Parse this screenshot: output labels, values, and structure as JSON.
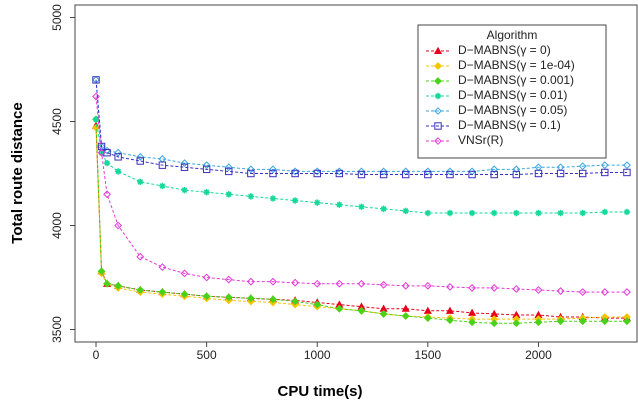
{
  "chart_data": {
    "type": "line",
    "x_label": "CPU time(s)",
    "y_label": "Total route distance",
    "legend_title": "Algorithm",
    "legend_position": "upper right",
    "x": [
      0,
      25,
      50,
      100,
      200,
      300,
      400,
      500,
      600,
      700,
      800,
      900,
      1000,
      1100,
      1200,
      1300,
      1400,
      1500,
      1600,
      1700,
      1800,
      1900,
      2000,
      2100,
      2200,
      2300,
      2400
    ],
    "series": [
      {
        "name": "D−MABNS(γ = 0)",
        "color": "#e8001c",
        "marker": "triangle",
        "values": [
          4480,
          3780,
          3720,
          3710,
          3690,
          3680,
          3670,
          3660,
          3655,
          3650,
          3645,
          3640,
          3630,
          3620,
          3610,
          3600,
          3600,
          3590,
          3590,
          3580,
          3575,
          3570,
          3570,
          3560,
          3560,
          3555,
          3555
        ]
      },
      {
        "name": "D−MABNS(γ = 1e-04)",
        "color": "#f5c400",
        "marker": "diamond",
        "values": [
          4470,
          3770,
          3720,
          3700,
          3680,
          3670,
          3660,
          3650,
          3640,
          3635,
          3630,
          3620,
          3610,
          3600,
          3590,
          3575,
          3565,
          3560,
          3555,
          3550,
          3550,
          3550,
          3550,
          3550,
          3555,
          3560,
          3560
        ]
      },
      {
        "name": "D−MABNS(γ = 0.001)",
        "color": "#4ad21a",
        "marker": "diamond",
        "values": [
          4510,
          3780,
          3720,
          3710,
          3690,
          3680,
          3670,
          3660,
          3655,
          3650,
          3645,
          3635,
          3620,
          3600,
          3590,
          3575,
          3565,
          3555,
          3545,
          3535,
          3530,
          3530,
          3535,
          3540,
          3540,
          3540,
          3540
        ]
      },
      {
        "name": "D−MABNS(γ = 0.01)",
        "color": "#14d99a",
        "marker": "star",
        "values": [
          4510,
          4350,
          4300,
          4260,
          4210,
          4190,
          4170,
          4160,
          4150,
          4140,
          4130,
          4120,
          4110,
          4100,
          4090,
          4080,
          4070,
          4060,
          4060,
          4060,
          4060,
          4060,
          4060,
          4060,
          4060,
          4065,
          4065
        ]
      },
      {
        "name": "D−MABNS(γ = 0.05)",
        "color": "#3aa6e0",
        "marker": "diamond-open",
        "values": [
          4700,
          4380,
          4360,
          4350,
          4330,
          4320,
          4300,
          4290,
          4280,
          4270,
          4270,
          4260,
          4260,
          4260,
          4260,
          4260,
          4260,
          4260,
          4260,
          4260,
          4270,
          4270,
          4280,
          4280,
          4285,
          4290,
          4290
        ]
      },
      {
        "name": "D−MABNS(γ = 0.1)",
        "color": "#3a2fc0",
        "marker": "square",
        "values": [
          4700,
          4380,
          4350,
          4330,
          4310,
          4290,
          4280,
          4270,
          4260,
          4250,
          4250,
          4250,
          4250,
          4250,
          4245,
          4245,
          4245,
          4245,
          4245,
          4245,
          4245,
          4245,
          4250,
          4250,
          4250,
          4255,
          4255
        ]
      },
      {
        "name": "VNSr(R)",
        "color": "#e43ad8",
        "marker": "diamond-open",
        "values": [
          4620,
          4350,
          4150,
          4000,
          3850,
          3800,
          3770,
          3750,
          3740,
          3730,
          3730,
          3725,
          3720,
          3720,
          3720,
          3715,
          3710,
          3710,
          3705,
          3700,
          3700,
          3695,
          3690,
          3685,
          3680,
          3680,
          3680
        ]
      }
    ],
    "xlim": [
      -95,
      2450
    ],
    "ylim": [
      3440,
      5060
    ],
    "xticks": [
      0,
      500,
      1000,
      1500,
      2000
    ],
    "yticks": [
      3500,
      4000,
      4500,
      5000
    ]
  }
}
